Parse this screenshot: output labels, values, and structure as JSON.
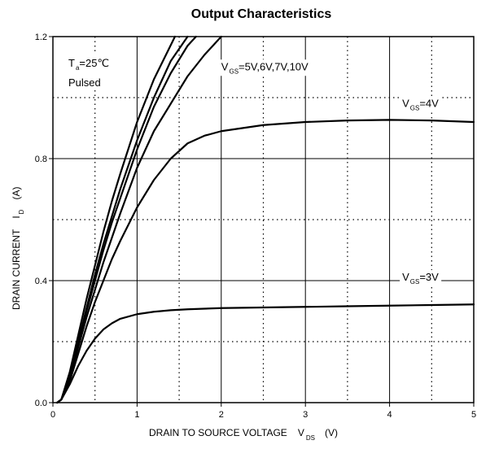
{
  "chart_data": {
    "type": "line",
    "title": "Output Characteristics",
    "xlabel": {
      "main": "DRAIN TO SOURCE VOLTAGE",
      "symbol": "V",
      "subscript": "DS",
      "unit": "(V)"
    },
    "ylabel": {
      "main": "DRAIN CURRENT",
      "symbol": "I",
      "subscript": "D",
      "unit": "(A)"
    },
    "xlim": [
      0,
      5
    ],
    "ylim": [
      0,
      1.2
    ],
    "x_ticks": [
      0,
      1,
      2,
      3,
      4,
      5
    ],
    "x_tick_labels": [
      "0",
      "1",
      "2",
      "3",
      "4",
      "5"
    ],
    "y_ticks": [
      0.0,
      0.4,
      0.8,
      1.2
    ],
    "y_tick_labels": [
      "0.0",
      "0.4",
      "0.8",
      "1.2"
    ],
    "grid": {
      "major_solid": true,
      "minor_dotted": true,
      "x_minor_step": 0.5,
      "y_minor_step": 0.2
    },
    "annotations": [
      {
        "kind": "conditions",
        "line1": {
          "main": "T",
          "subscript": "a",
          "tail": "=25℃"
        },
        "line2": "Pulsed"
      },
      {
        "kind": "series_label",
        "main": "V",
        "subscript": "GS",
        "tail": "=5V,6V,7V,10V",
        "anchor": [
          2.0,
          1.09
        ]
      },
      {
        "kind": "series_label",
        "main": "V",
        "subscript": "GS",
        "tail": "=4V",
        "anchor": [
          4.15,
          0.97
        ]
      },
      {
        "kind": "series_label",
        "main": "V",
        "subscript": "GS",
        "tail": "=3V",
        "anchor": [
          4.15,
          0.4
        ]
      }
    ],
    "series": [
      {
        "x": [
          0.05,
          0.1,
          0.2,
          0.3,
          0.4,
          0.5,
          0.6,
          0.7,
          0.8,
          1.0,
          1.2,
          1.4,
          1.6,
          1.8,
          2.0,
          2.5,
          3.0,
          3.5,
          4.0,
          4.5,
          5.0
        ],
        "values": [
          0,
          0.01,
          0.06,
          0.12,
          0.17,
          0.21,
          0.24,
          0.26,
          0.275,
          0.29,
          0.298,
          0.303,
          0.306,
          0.308,
          0.31,
          0.312,
          0.314,
          0.316,
          0.318,
          0.32,
          0.322
        ]
      },
      {
        "x": [
          0.05,
          0.1,
          0.2,
          0.3,
          0.4,
          0.5,
          0.6,
          0.7,
          0.8,
          1.0,
          1.2,
          1.4,
          1.6,
          1.8,
          2.0,
          2.5,
          3.0,
          3.5,
          4.0,
          4.5,
          5.0
        ],
        "values": [
          0,
          0.01,
          0.07,
          0.16,
          0.25,
          0.33,
          0.4,
          0.47,
          0.53,
          0.64,
          0.73,
          0.8,
          0.85,
          0.875,
          0.89,
          0.91,
          0.92,
          0.925,
          0.927,
          0.925,
          0.92
        ]
      },
      {
        "x": [
          0.05,
          0.1,
          0.2,
          0.3,
          0.4,
          0.5,
          0.6,
          0.7,
          0.8,
          1.0,
          1.2,
          1.4,
          1.6,
          1.8,
          2.0
        ],
        "values": [
          0,
          0.01,
          0.08,
          0.18,
          0.28,
          0.37,
          0.46,
          0.54,
          0.62,
          0.77,
          0.89,
          0.98,
          1.07,
          1.14,
          1.2
        ]
      },
      {
        "x": [
          0.05,
          0.1,
          0.2,
          0.3,
          0.4,
          0.5,
          0.6,
          0.7,
          0.8,
          1.0,
          1.2,
          1.4,
          1.6,
          1.7
        ],
        "values": [
          0,
          0.01,
          0.09,
          0.19,
          0.3,
          0.4,
          0.5,
          0.59,
          0.67,
          0.83,
          0.97,
          1.08,
          1.17,
          1.2
        ]
      },
      {
        "x": [
          0.05,
          0.1,
          0.2,
          0.3,
          0.4,
          0.5,
          0.6,
          0.7,
          0.8,
          1.0,
          1.2,
          1.4,
          1.6
        ],
        "values": [
          0,
          0.01,
          0.09,
          0.2,
          0.31,
          0.42,
          0.52,
          0.61,
          0.7,
          0.86,
          1.0,
          1.12,
          1.2
        ]
      },
      {
        "x": [
          0.05,
          0.1,
          0.2,
          0.3,
          0.4,
          0.5,
          0.6,
          0.7,
          0.8,
          1.0,
          1.2,
          1.45
        ],
        "values": [
          0,
          0.01,
          0.1,
          0.22,
          0.34,
          0.45,
          0.56,
          0.66,
          0.75,
          0.92,
          1.06,
          1.2
        ]
      }
    ]
  }
}
